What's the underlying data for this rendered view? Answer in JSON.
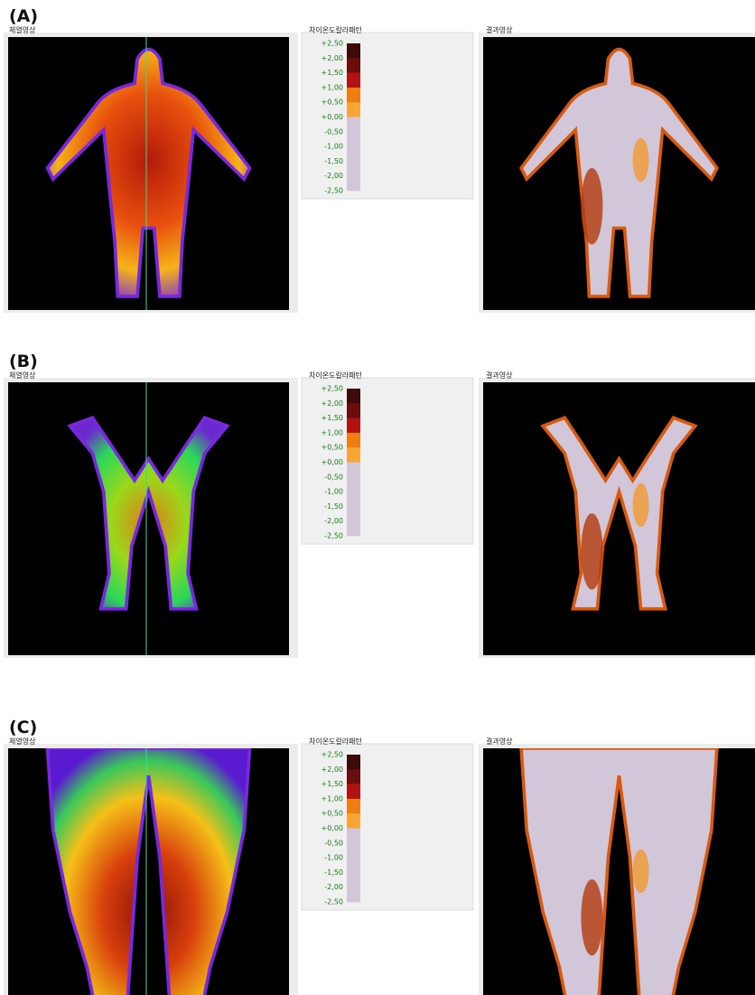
{
  "panels": [
    {
      "label": "(A)",
      "thermal_title": "체열영상",
      "scale_title": "차이온도칼라패턴",
      "scale_labels": [
        "+2,50",
        "+2,00",
        "+1,50",
        "+1,00",
        "+0,50",
        "+0,00",
        "-0,50",
        "-1,00",
        "-1,50",
        "-2,00",
        "-2,50"
      ],
      "result_title": "결과영상"
    },
    {
      "label": "(B)",
      "thermal_title": "체열영상",
      "scale_title": "차이온도칼라패턴",
      "scale_labels": [
        "+2,50",
        "+2,00",
        "+1,50",
        "+1,00",
        "+0,50",
        "+0,00",
        "-0,50",
        "-1,00",
        "-1,50",
        "-2,00",
        "-2,50"
      ],
      "result_title": "결과영상"
    },
    {
      "label": "(C)",
      "thermal_title": "체열영상",
      "scale_title": "차이온도칼라패턴",
      "scale_labels": [
        "+2,50",
        "+2,00",
        "+1,50",
        "+1,00",
        "+0,50",
        "+0,00",
        "-0,50",
        "-1,00",
        "-1,50",
        "-2,00",
        "-2,50"
      ],
      "result_title": "결과영상"
    }
  ]
}
